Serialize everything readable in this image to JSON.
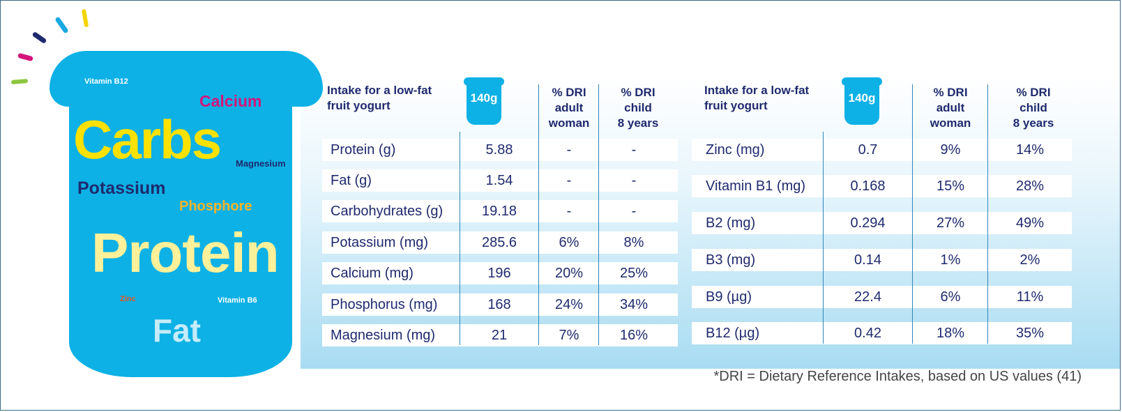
{
  "colors": {
    "cup": "#0db1e5",
    "text_navy": "#1f2a6e",
    "yellow": "#ffe100",
    "cream": "#fff09a",
    "magenta": "#d4157a",
    "orange": "#f6b428",
    "light_blue_text": "#c5ecfb"
  },
  "cup_words": {
    "vitamin_b12": "Vitamin B12",
    "calcium": "Calcium",
    "carbs": "Carbs",
    "magnesium": "Magnesium",
    "potassium": "Potassium",
    "phosphore": "Phosphore",
    "protein": "Protein",
    "zinc": "Zinc",
    "vitamin_b6": "Vitamin B6",
    "fat": "Fat"
  },
  "headers": {
    "intake_line1": "Intake for a low-fat",
    "intake_line2": "fruit yogurt",
    "cup_label": "140g",
    "dri_woman_1": "% DRI",
    "dri_woman_2": "adult",
    "dri_woman_3": "woman",
    "dri_child_1": "% DRI",
    "dri_child_2": "child",
    "dri_child_3": "8 years"
  },
  "left_table": [
    {
      "nutrient": "Protein (g)",
      "amount": "5.88",
      "woman": "-",
      "child": "-"
    },
    {
      "nutrient": "Fat (g)",
      "amount": "1.54",
      "woman": "-",
      "child": "-"
    },
    {
      "nutrient": "Carbohydrates (g)",
      "amount": "19.18",
      "woman": "-",
      "child": "-"
    },
    {
      "nutrient": "Potassium (mg)",
      "amount": "285.6",
      "woman": "6%",
      "child": "8%"
    },
    {
      "nutrient": "Calcium (mg)",
      "amount": "196",
      "woman": "20%",
      "child": "25%"
    },
    {
      "nutrient": "Phosphorus (mg)",
      "amount": "168",
      "woman": "24%",
      "child": "34%"
    },
    {
      "nutrient": "Magnesium (mg)",
      "amount": "21",
      "woman": "7%",
      "child": "16%"
    }
  ],
  "right_table": [
    {
      "nutrient": "Zinc (mg)",
      "amount": "0.7",
      "woman": "9%",
      "child": "14%"
    },
    {
      "nutrient": "Vitamin B1 (mg)",
      "amount": "0.168",
      "woman": "15%",
      "child": "28%"
    },
    {
      "nutrient": "B2 (mg)",
      "amount": "0.294",
      "woman": "27%",
      "child": "49%"
    },
    {
      "nutrient": "B3 (mg)",
      "amount": "0.14",
      "woman": "1%",
      "child": "2%"
    },
    {
      "nutrient": "B9 (µg)",
      "amount": "22.4",
      "woman": "6%",
      "child": "11%"
    },
    {
      "nutrient": "B12 (µg)",
      "amount": "0.42",
      "woman": "18%",
      "child": "35%"
    }
  ],
  "footnote": "*DRI = Dietary Reference Intakes, based on US values (41)"
}
